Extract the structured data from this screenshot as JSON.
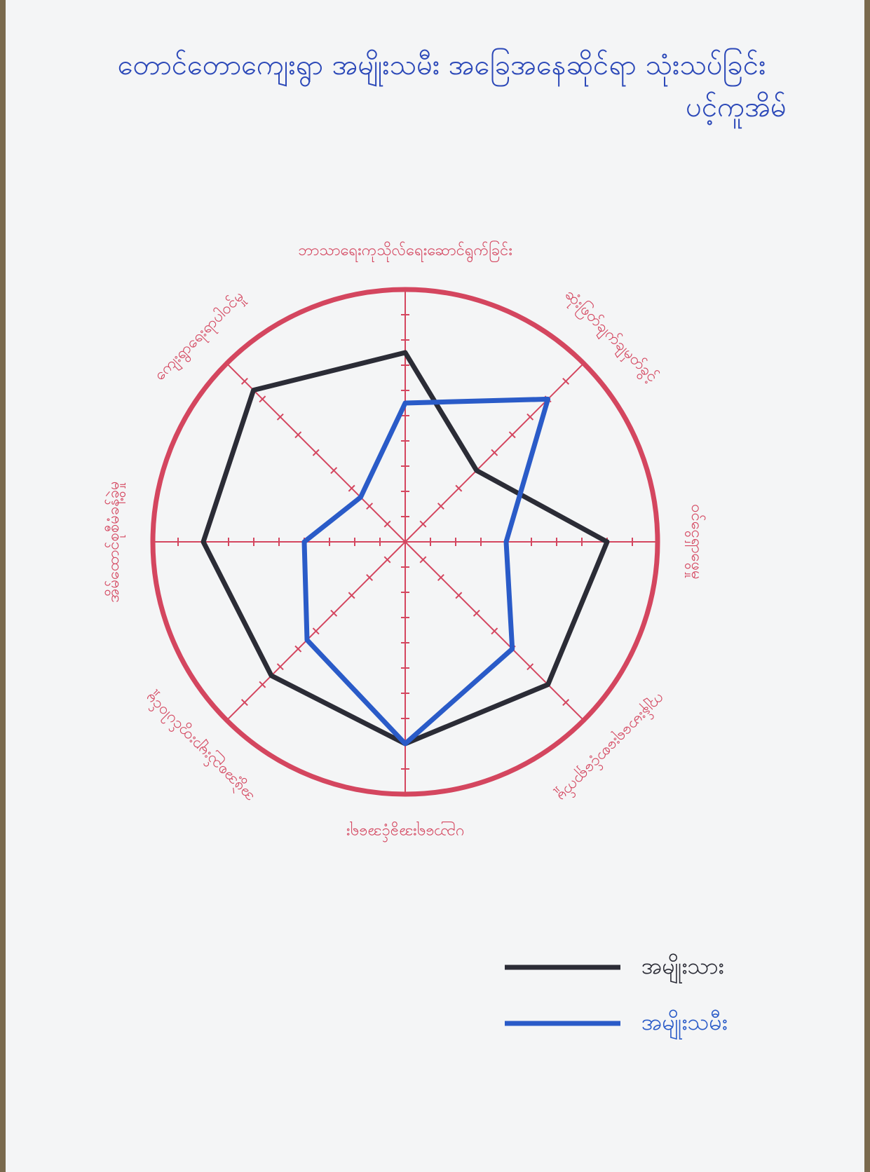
{
  "chart_data": {
    "type": "radar",
    "title": "တောင်တောကျေးရွာ အမျိုးသမီး အခြေအနေဆိုင်ရာ သုံးသပ်ခြင်း",
    "subtitle": "ပင့်ကူအိမ်",
    "axes": [
      "ဘာသာရေးကုသိုလ်ရေးဆောင်ရွက်ခြင်း",
      "ဆုံးဖြတ်ချက်ချမှတ်ခွင့်",
      "ဝင်ငွေရှာဖွေမှု",
      "ကျန်းမာရေးစောင့်ရှောက်မှု",
      "ပညာရေးအခွင့်အရေး",
      "အဖွဲ့အစည်းများတွင်ပါဝင်မှု",
      "အိမ်ထောင်စုစီမံခန့်ခွဲမှု",
      "ကျေးရွာရေးရာပါဝင်မှု"
    ],
    "series": [
      {
        "name": "အမျိုးသား",
        "color": "#2b2c36",
        "values": [
          7.5,
          4,
          8,
          8,
          8,
          7.5,
          8,
          8.5
        ]
      },
      {
        "name": "အမျိုးသမီး",
        "color": "#2a5bc8",
        "values": [
          5.5,
          8,
          4,
          6,
          8,
          5.5,
          4,
          2.5
        ]
      }
    ],
    "rlim": [
      0,
      10
    ],
    "rticks": [
      1,
      2,
      3,
      4,
      5,
      6,
      7,
      8,
      9
    ],
    "axis_color": "#d4465f"
  }
}
